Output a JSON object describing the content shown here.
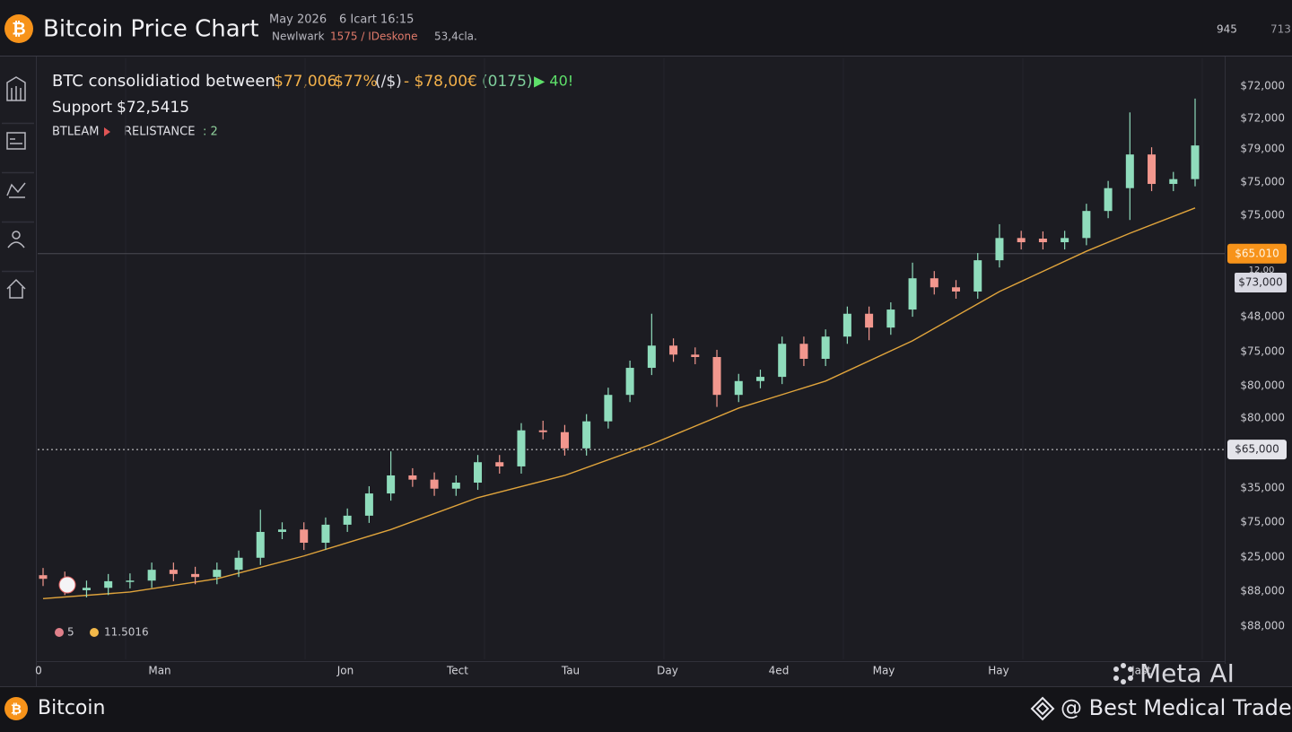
{
  "header": {
    "title": "Bitcoin Price Chart",
    "meta": [
      "May 2026",
      "6 Icart 16:15",
      "Newlwark",
      "1575 / IDeskone",
      "53,4cla."
    ],
    "right": [
      "945",
      "713"
    ]
  },
  "annotation": {
    "line1": "BTC consolidiatiod between",
    "prices": [
      "$77,006",
      "$77%",
      "(/$)",
      "- $78,00€"
    ],
    "change": "(0175)",
    "signal": "▶ 40!",
    "support_label": "Support",
    "support_value": "$72,5415",
    "tag": "BTLEAM",
    "resistance": "RELISTANCE",
    "resistance_count": ": 2"
  },
  "chart_data": {
    "type": "candlestick",
    "ylim": [
      0,
      100
    ],
    "up_color": "#8fdcbc",
    "down_color": "#f2978e",
    "open": [
      14.0,
      13.4,
      11.5,
      11.9,
      13.0,
      13.1,
      14.9,
      14.2,
      13.7,
      14.9,
      16.9,
      21.2,
      21.6,
      19.4,
      22.4,
      23.9,
      27.6,
      30.6,
      29.9,
      28.4,
      29.4,
      32.8,
      32.1,
      38.1,
      37.8,
      35.1,
      39.6,
      44.0,
      48.5,
      52.2,
      50.7,
      50.3,
      44.0,
      46.3,
      47.0,
      52.5,
      50.0,
      53.7,
      57.5,
      55.2,
      58.2,
      63.4,
      61.9,
      61.2,
      66.4,
      70.1,
      70.0,
      69.4,
      70.1,
      74.6,
      78.4,
      84.0,
      79.1,
      79.9
    ],
    "high": [
      15.2,
      14.6,
      13.1,
      14.2,
      14.3,
      16.1,
      16.1,
      15.4,
      16.1,
      18.1,
      24.9,
      22.8,
      22.8,
      23.6,
      25.1,
      28.8,
      34.6,
      31.8,
      31.1,
      30.6,
      34.0,
      34.0,
      39.3,
      39.7,
      39.0,
      40.8,
      45.2,
      49.7,
      57.5,
      53.4,
      51.9,
      51.5,
      47.5,
      48.2,
      53.7,
      53.7,
      54.9,
      58.7,
      58.7,
      59.4,
      66.0,
      64.6,
      63.1,
      67.6,
      72.4,
      71.3,
      71.2,
      71.3,
      75.8,
      79.6,
      91.0,
      85.2,
      81.1,
      93.3
    ],
    "low": [
      12.2,
      10.7,
      10.3,
      10.7,
      11.8,
      11.9,
      13.0,
      12.5,
      12.5,
      13.7,
      15.7,
      20.0,
      18.2,
      18.2,
      21.2,
      22.7,
      26.4,
      28.7,
      27.2,
      27.2,
      28.2,
      30.9,
      30.9,
      36.6,
      33.9,
      33.9,
      38.4,
      42.8,
      47.3,
      49.5,
      49.1,
      42.0,
      42.8,
      45.1,
      45.8,
      48.8,
      48.8,
      52.5,
      53.1,
      54.0,
      57.0,
      60.7,
      60.0,
      60.0,
      65.2,
      68.2,
      68.2,
      68.2,
      68.9,
      73.4,
      73.1,
      77.9,
      77.9,
      78.7
    ],
    "close": [
      13.4,
      11.9,
      11.9,
      13.0,
      13.1,
      14.9,
      14.2,
      13.7,
      14.9,
      16.9,
      21.2,
      21.6,
      19.4,
      22.4,
      23.9,
      27.6,
      30.6,
      29.9,
      28.4,
      29.4,
      32.8,
      32.1,
      38.1,
      37.8,
      35.1,
      39.6,
      44.0,
      48.5,
      52.2,
      50.7,
      50.3,
      44.0,
      46.3,
      47.0,
      52.5,
      50.0,
      53.7,
      57.5,
      55.2,
      58.2,
      63.4,
      61.9,
      61.2,
      66.4,
      70.1,
      69.4,
      69.4,
      70.1,
      74.6,
      78.4,
      84.0,
      79.1,
      79.9,
      85.5
    ],
    "ma": {
      "color": "#e0a43c",
      "x": [
        0,
        4,
        8,
        12,
        16,
        20,
        24,
        28,
        32,
        36,
        40,
        44,
        48,
        50,
        53
      ],
      "values": [
        10.1,
        11.2,
        13.4,
        17.2,
        21.6,
        26.9,
        30.6,
        35.8,
        41.8,
        46.3,
        53.0,
        61.2,
        67.9,
        70.9,
        75.1
      ]
    },
    "price_lines": [
      {
        "value": 67.5,
        "label": "$65.010",
        "style": "solid"
      },
      {
        "value": 34.9,
        "label": "$65,000",
        "style": "dotted"
      }
    ]
  },
  "y_axis_labels": [
    "$72,000",
    "$72,000",
    "$79,000",
    "$75,000",
    "$75,000",
    "$48,000",
    "$75,000",
    "$80,000",
    "$80,000",
    "$35,000",
    "$75,000",
    "$25,000",
    "$88,000",
    "$88,000"
  ],
  "extra_tag": {
    "small": "12,00",
    "label": "$73,000"
  },
  "x_axis_labels": [
    "0",
    "Man",
    "Jon",
    "Tect",
    "Tau",
    "Day",
    "4ed",
    "May",
    "Hay",
    "Jast"
  ],
  "legend": [
    "5",
    "11.5016"
  ],
  "footer": {
    "name": "Bitcoin",
    "watermark": "Meta AI",
    "handle": "@ Best Medical Trader"
  }
}
